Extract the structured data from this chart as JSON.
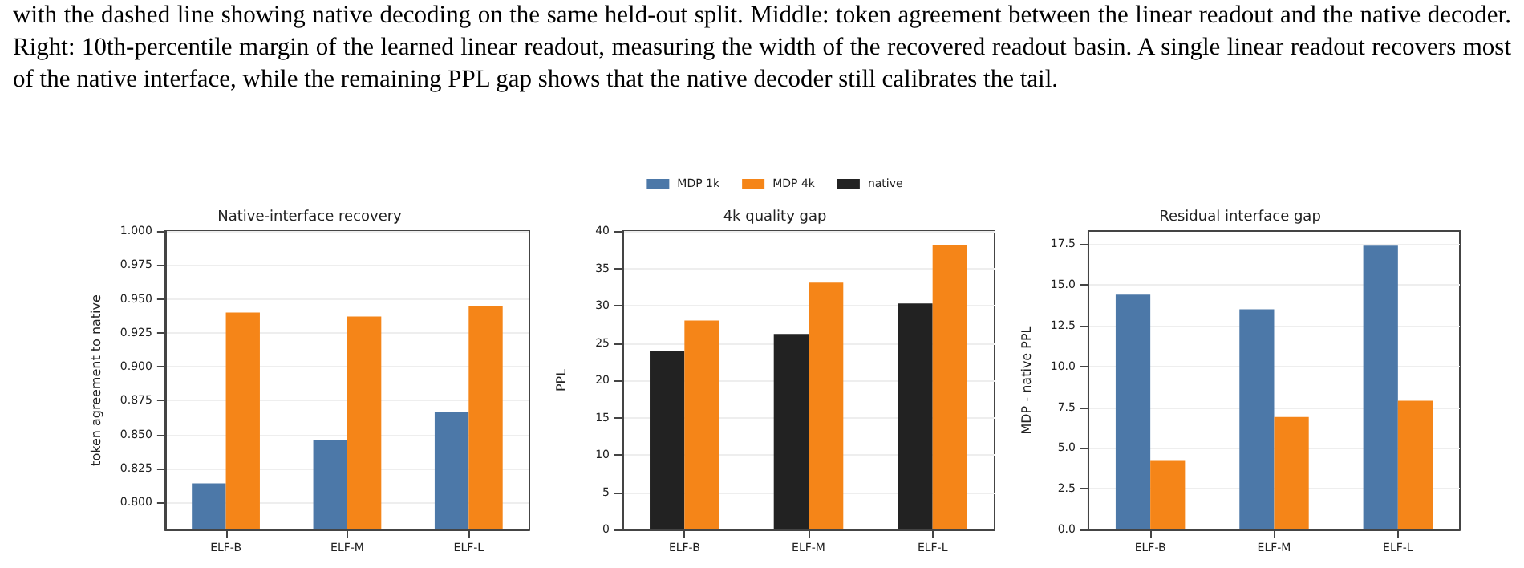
{
  "chart_data": [
    {
      "type": "other",
      "annotations": [
        "with the dashed line showing native decoding on the same held-out split. Middle: token agreement between the linear readout and the native decoder. Right: 10th-percentile margin of the learned linear readout, measuring the width of the recovered readout basin. A single linear readout recovers most of the native interface, while the remaining PPL gap shows that the native decoder still calibrates the tail."
      ]
    },
    {
      "type": "bar",
      "title": "Native-interface recovery",
      "ylabel": "token agreement to native",
      "categories": [
        "ELF-B",
        "ELF-M",
        "ELF-L"
      ],
      "series": [
        {
          "color": "#4c78a8",
          "values": [
            0.814,
            0.846,
            0.867
          ]
        },
        {
          "color": "#f58518",
          "values": [
            0.94,
            0.937,
            0.945
          ]
        }
      ],
      "ylim": [
        0.78,
        1.0
      ],
      "yticks": [
        {
          "value": 0.8,
          "label": "0.800"
        },
        {
          "value": 0.825,
          "label": "0.825"
        },
        {
          "value": 0.85,
          "label": "0.850"
        },
        {
          "value": 0.875,
          "label": "0.875"
        },
        {
          "value": 0.9,
          "label": "0.900"
        },
        {
          "value": 0.925,
          "label": "0.925"
        },
        {
          "value": 0.95,
          "label": "0.950"
        },
        {
          "value": 0.975,
          "label": "0.975"
        },
        {
          "value": 1.0,
          "label": "1.000"
        }
      ],
      "grid": "y",
      "legend": false
    },
    {
      "type": "bar",
      "title": "4k quality gap",
      "ylabel": "PPL",
      "categories": [
        "ELF-B",
        "ELF-M",
        "ELF-L"
      ],
      "series": [
        {
          "name": "MDP 1k",
          "color": "#4c78a8",
          "values": [
            null,
            null,
            null
          ]
        },
        {
          "name": "MDP 4k",
          "color": "#f58518",
          "values": [
            28.0,
            33.1,
            38.1
          ]
        },
        {
          "name": "native",
          "color": "#222222",
          "values": [
            23.9,
            26.2,
            30.3
          ]
        }
      ],
      "ylim": [
        0,
        40
      ],
      "yticks": [
        0,
        5,
        10,
        15,
        20,
        25,
        30,
        35,
        40
      ],
      "grid": "y",
      "legend": "top"
    },
    {
      "type": "bar",
      "title": "Residual interface gap",
      "ylabel": "MDP - native PPL",
      "categories": [
        "ELF-B",
        "ELF-M",
        "ELF-L"
      ],
      "series": [
        {
          "color": "#4c78a8",
          "values": [
            14.4,
            13.5,
            17.4
          ]
        },
        {
          "color": "#f58518",
          "values": [
            4.2,
            6.9,
            7.9
          ]
        }
      ],
      "ylim": [
        0,
        18.3
      ],
      "yticks": [
        {
          "value": 0,
          "label": "0.0"
        },
        {
          "value": 2.5,
          "label": "2.5"
        },
        {
          "value": 5,
          "label": "5.0"
        },
        {
          "value": 7.5,
          "label": "7.5"
        },
        {
          "value": 10,
          "label": "10.0"
        },
        {
          "value": 12.5,
          "label": "12.5"
        },
        {
          "value": 15,
          "label": "15.0"
        },
        {
          "value": 17.5,
          "label": "17.5"
        }
      ],
      "grid": "y",
      "legend": false
    }
  ]
}
